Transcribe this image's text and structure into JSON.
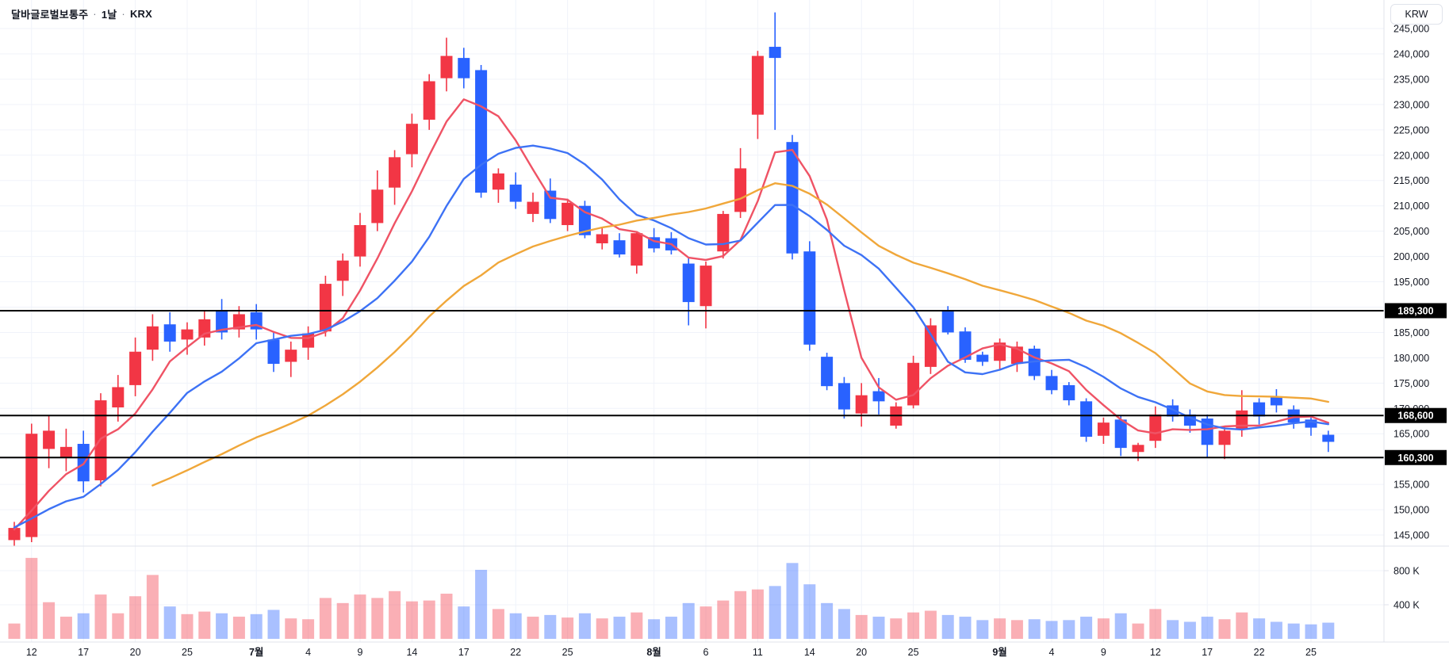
{
  "header": {
    "symbol": "달바글로벌보통주",
    "separator": "·",
    "interval": "1날",
    "exchange": "KRX"
  },
  "axis": {
    "currency_button": "KRW",
    "price_ticks": [
      145000,
      150000,
      155000,
      160000,
      165000,
      170000,
      175000,
      180000,
      185000,
      190000,
      195000,
      200000,
      205000,
      210000,
      215000,
      220000,
      225000,
      230000,
      235000,
      240000,
      245000
    ],
    "volume_ticks": [
      {
        "value": 400,
        "label": "400 K"
      },
      {
        "value": 800,
        "label": "800 K"
      }
    ]
  },
  "price_lines": [
    {
      "value": 189300,
      "label": "189,300"
    },
    {
      "value": 168600,
      "label": "168,600"
    },
    {
      "value": 160300,
      "label": "160,300"
    }
  ],
  "chart_data": {
    "type": "candlestick_with_volume",
    "title": "달바글로벌보통주 · 1날 · KRX",
    "currency": "KRW",
    "volume_unit": "K shares",
    "ylim": [
      143000,
      250600
    ],
    "grid": true,
    "colors": {
      "up": "#f23645",
      "down": "#2962ff",
      "volume_up": "rgba(242,54,69,0.40)",
      "volume_down": "rgba(41,98,255,0.40)",
      "ma_fast": "#ef5365",
      "ma_mid": "#3d72f5",
      "ma_slow": "#f0a73a",
      "grid": "#f0f3fa",
      "axis_border": "#e0e3eb",
      "text": "#131722",
      "price_line": "#000000"
    },
    "indicators": [
      {
        "name": "MA fast",
        "period": 5,
        "color": "#ef5365",
        "start_index": 0
      },
      {
        "name": "MA mid",
        "period": 10,
        "color": "#3d72f5",
        "start_index": 0
      },
      {
        "name": "MA slow",
        "period": 24,
        "color": "#f0a73a",
        "start_index": 8
      }
    ],
    "ma_seed_closes": [
      152000,
      151700,
      151400,
      151100,
      150800,
      150500,
      150300,
      150100,
      149900,
      149700,
      149500,
      149300,
      149100,
      148900,
      148700,
      148500,
      148300,
      148100,
      147900,
      147700,
      147500,
      147300,
      147100,
      146900,
      146700,
      146500,
      146300,
      146100,
      145900,
      145700
    ],
    "x_labels": [
      {
        "index": 1,
        "label": "12"
      },
      {
        "index": 4,
        "label": "17"
      },
      {
        "index": 7,
        "label": "20"
      },
      {
        "index": 10,
        "label": "25"
      },
      {
        "index": 14,
        "label": "7월"
      },
      {
        "index": 17,
        "label": "4"
      },
      {
        "index": 20,
        "label": "9"
      },
      {
        "index": 23,
        "label": "14"
      },
      {
        "index": 26,
        "label": "17"
      },
      {
        "index": 29,
        "label": "22"
      },
      {
        "index": 32,
        "label": "25"
      },
      {
        "index": 37,
        "label": "8월"
      },
      {
        "index": 40,
        "label": "6"
      },
      {
        "index": 43,
        "label": "11"
      },
      {
        "index": 46,
        "label": "14"
      },
      {
        "index": 49,
        "label": "20"
      },
      {
        "index": 52,
        "label": "25"
      },
      {
        "index": 57,
        "label": "9월"
      },
      {
        "index": 60,
        "label": "4"
      },
      {
        "index": 63,
        "label": "9"
      },
      {
        "index": 66,
        "label": "12"
      },
      {
        "index": 69,
        "label": "17"
      },
      {
        "index": 72,
        "label": "22"
      },
      {
        "index": 75,
        "label": "25"
      }
    ],
    "candle_columns": [
      "date",
      "open",
      "high",
      "low",
      "close",
      "volume_k"
    ],
    "candles": [
      [
        "06-11",
        144000,
        147600,
        142800,
        146400,
        180
      ],
      [
        "06-12",
        144600,
        167000,
        143600,
        165000,
        950
      ],
      [
        "06-13",
        162000,
        168600,
        158200,
        165600,
        430
      ],
      [
        "06-16",
        160400,
        166000,
        157600,
        162400,
        260
      ],
      [
        "06-17",
        163000,
        165600,
        153400,
        155600,
        300
      ],
      [
        "06-18",
        155800,
        173000,
        154600,
        171600,
        520
      ],
      [
        "06-19",
        170200,
        176600,
        167400,
        174200,
        300
      ],
      [
        "06-20",
        174600,
        184000,
        172400,
        181200,
        500
      ],
      [
        "06-23",
        181600,
        188600,
        179400,
        186200,
        750
      ],
      [
        "06-24",
        186600,
        189000,
        181200,
        183200,
        380
      ],
      [
        "06-25",
        183600,
        187000,
        180600,
        185600,
        290
      ],
      [
        "06-26",
        184000,
        189200,
        182400,
        187600,
        320
      ],
      [
        "06-27",
        189400,
        191600,
        183600,
        185000,
        300
      ],
      [
        "06-30",
        185600,
        190200,
        184000,
        188600,
        260
      ],
      [
        "07-01",
        189000,
        190600,
        183600,
        185600,
        290
      ],
      [
        "07-02",
        183600,
        185200,
        177200,
        178800,
        340
      ],
      [
        "07-03",
        179200,
        183200,
        176200,
        181600,
        240
      ],
      [
        "07-04",
        182000,
        186200,
        179600,
        184800,
        230
      ],
      [
        "07-07",
        185200,
        196200,
        184200,
        194600,
        480
      ],
      [
        "07-08",
        195200,
        200600,
        192200,
        199200,
        420
      ],
      [
        "07-09",
        200000,
        208600,
        198000,
        206200,
        520
      ],
      [
        "07-10",
        206600,
        217000,
        205000,
        213200,
        480
      ],
      [
        "07-11",
        213600,
        221000,
        210200,
        219600,
        560
      ],
      [
        "07-14",
        220200,
        228200,
        217600,
        226200,
        440
      ],
      [
        "07-15",
        227000,
        236000,
        225000,
        234600,
        450
      ],
      [
        "07-16",
        235200,
        243200,
        232600,
        239600,
        530
      ],
      [
        "07-17",
        239200,
        241200,
        233200,
        235200,
        380
      ],
      [
        "07-18",
        236800,
        237800,
        211600,
        212600,
        810
      ],
      [
        "07-21",
        213200,
        217400,
        210600,
        216400,
        350
      ],
      [
        "07-22",
        214200,
        216600,
        209400,
        210800,
        300
      ],
      [
        "07-23",
        208400,
        212600,
        206800,
        210800,
        260
      ],
      [
        "07-24",
        213000,
        215400,
        206600,
        207400,
        280
      ],
      [
        "07-25",
        206200,
        211400,
        205000,
        210600,
        250
      ],
      [
        "07-28",
        210000,
        211000,
        203600,
        204200,
        300
      ],
      [
        "07-29",
        202600,
        205600,
        201400,
        204400,
        240
      ],
      [
        "07-30",
        203200,
        204600,
        199800,
        200400,
        260
      ],
      [
        "07-31",
        198200,
        205000,
        196600,
        204600,
        310
      ],
      [
        "08-01",
        203800,
        205600,
        200800,
        201600,
        230
      ],
      [
        "08-04",
        203600,
        204800,
        200400,
        201200,
        260
      ],
      [
        "08-05",
        198600,
        199800,
        186400,
        191000,
        420
      ],
      [
        "08-06",
        190200,
        199000,
        185800,
        198200,
        380
      ],
      [
        "08-07",
        201000,
        209000,
        199600,
        208400,
        450
      ],
      [
        "08-08",
        208800,
        221400,
        207600,
        217400,
        560
      ],
      [
        "08-11",
        228000,
        240600,
        223200,
        239600,
        580
      ],
      [
        "08-12",
        241400,
        248200,
        225000,
        239200,
        620
      ],
      [
        "08-13",
        222600,
        224000,
        199400,
        200600,
        890
      ],
      [
        "08-14",
        201000,
        203000,
        181400,
        182600,
        640
      ],
      [
        "08-18",
        180200,
        181000,
        173600,
        174400,
        420
      ],
      [
        "08-19",
        175000,
        176200,
        168000,
        169800,
        350
      ],
      [
        "08-20",
        169000,
        175000,
        166400,
        172600,
        280
      ],
      [
        "08-21",
        173400,
        176000,
        168800,
        171400,
        260
      ],
      [
        "08-22",
        166600,
        171200,
        166000,
        170400,
        240
      ],
      [
        "08-25",
        170600,
        180400,
        170000,
        179000,
        310
      ],
      [
        "08-26",
        178200,
        187800,
        176800,
        186400,
        330
      ],
      [
        "08-27",
        189200,
        190200,
        184600,
        185000,
        280
      ],
      [
        "08-28",
        185200,
        186000,
        179000,
        179600,
        260
      ],
      [
        "08-29",
        180600,
        181200,
        178400,
        179200,
        220
      ],
      [
        "09-01",
        179400,
        183800,
        177800,
        183000,
        240
      ],
      [
        "09-02",
        178800,
        183200,
        177200,
        182200,
        220
      ],
      [
        "09-03",
        181800,
        182400,
        175600,
        176400,
        230
      ],
      [
        "09-04",
        176400,
        177600,
        172800,
        173600,
        210
      ],
      [
        "09-05",
        174600,
        175200,
        170600,
        171600,
        220
      ],
      [
        "09-08",
        171400,
        172000,
        163400,
        164400,
        260
      ],
      [
        "09-09",
        164600,
        168200,
        163000,
        167200,
        240
      ],
      [
        "09-10",
        167800,
        168600,
        160600,
        162200,
        300
      ],
      [
        "09-11",
        161400,
        163200,
        159600,
        162800,
        180
      ],
      [
        "09-12",
        163600,
        170400,
        162200,
        168800,
        350
      ],
      [
        "09-15",
        170600,
        171800,
        167400,
        168400,
        220
      ],
      [
        "09-16",
        168800,
        169800,
        165200,
        166600,
        200
      ],
      [
        "09-17",
        168000,
        168800,
        160200,
        162800,
        260
      ],
      [
        "09-18",
        162800,
        166400,
        160000,
        165600,
        230
      ],
      [
        "09-19",
        165800,
        173600,
        164400,
        169600,
        310
      ],
      [
        "09-22",
        171200,
        172000,
        166800,
        168400,
        240
      ],
      [
        "09-23",
        172200,
        173800,
        169200,
        170600,
        200
      ],
      [
        "09-24",
        169800,
        170600,
        166000,
        167200,
        180
      ],
      [
        "09-25",
        167800,
        168400,
        164600,
        166200,
        170
      ],
      [
        "09-26",
        164800,
        165600,
        161400,
        163400,
        190
      ]
    ]
  }
}
